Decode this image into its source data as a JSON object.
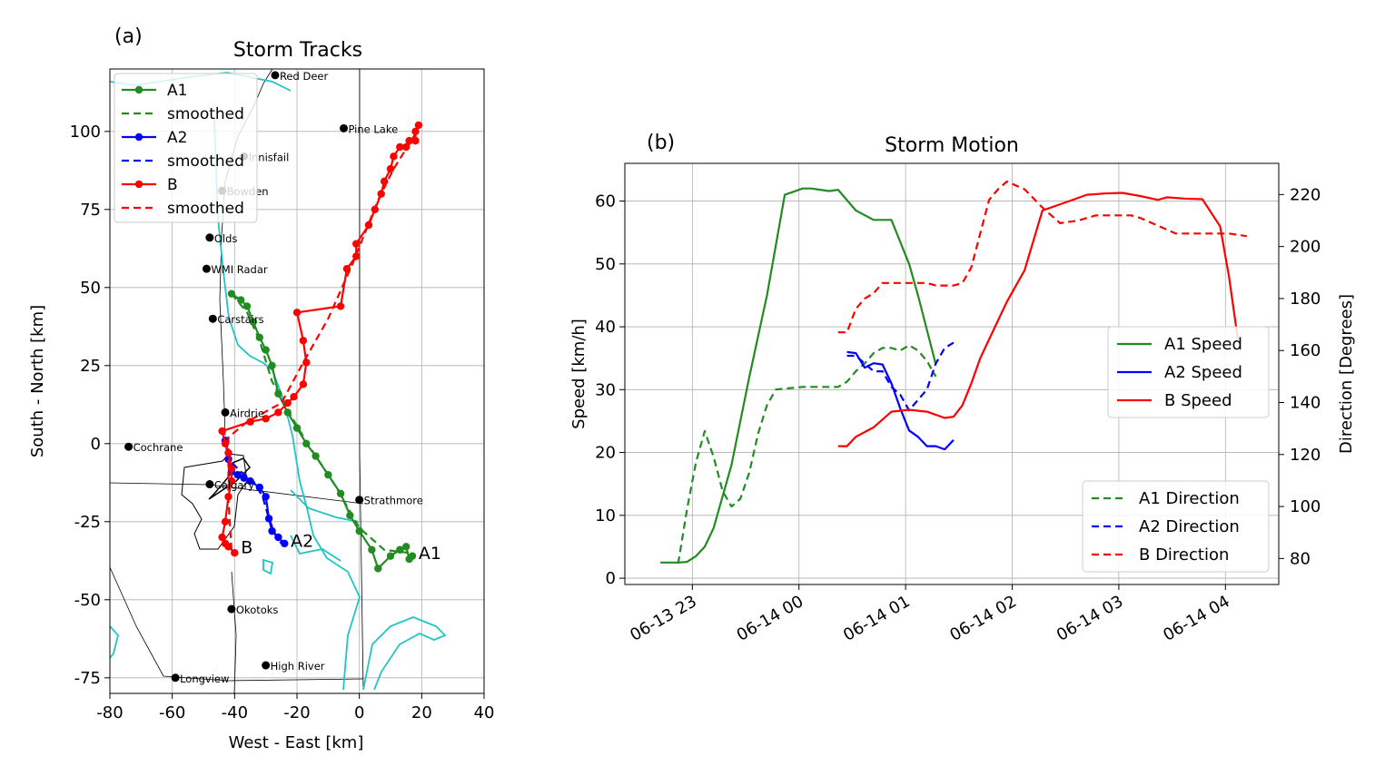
{
  "chart_data": [
    {
      "panel_label": "(a)",
      "type": "line",
      "title": "Storm Tracks",
      "xlabel": "West - East [km]",
      "ylabel": "South - North [km]",
      "xlim": [
        -80,
        40
      ],
      "ylim": [
        -80,
        120
      ],
      "xticks": [
        -80,
        -60,
        -40,
        -20,
        0,
        20,
        40
      ],
      "yticks": [
        -75,
        -50,
        -25,
        0,
        25,
        50,
        75,
        100
      ],
      "grid": true,
      "legend_position": "upper-left",
      "legend": [
        "A1",
        "smoothed",
        "A2",
        "smoothed",
        "B",
        "smoothed"
      ],
      "colors": {
        "A1": "#228b22",
        "A2": "#0000ff",
        "B": "#ff0000",
        "rivers": "#22c4c4",
        "city": "#000000"
      },
      "series": [
        {
          "name": "A1",
          "style": "solid-markers",
          "x": [
            -41,
            -38,
            -36,
            -34,
            -32,
            -30,
            -28,
            -26,
            -23,
            -20,
            -17,
            -14,
            -10,
            -6,
            -3,
            0,
            4,
            6,
            10,
            13,
            15,
            16,
            17
          ],
          "y": [
            48,
            46,
            44,
            39,
            34,
            30,
            25,
            16,
            10,
            5,
            0,
            -4,
            -10,
            -16,
            -23,
            -28,
            -34,
            -40,
            -36,
            -34,
            -33,
            -37,
            -36
          ]
        },
        {
          "name": "smoothed",
          "series_of": "A1",
          "style": "dashed",
          "x": [
            -41,
            -36,
            -32,
            -28,
            -22,
            -16,
            -8,
            0,
            8,
            16
          ],
          "y": [
            48,
            42,
            33,
            20,
            9,
            -1,
            -13,
            -27,
            -34,
            -35
          ]
        },
        {
          "name": "A2",
          "style": "solid-markers",
          "x": [
            -43,
            -42,
            -41,
            -39,
            -37,
            -35,
            -32,
            -30,
            -29,
            -28,
            -26,
            -24
          ],
          "y": [
            1,
            -5,
            -9,
            -10,
            -11,
            -12,
            -14,
            -17,
            -24,
            -28,
            -30,
            -32
          ]
        },
        {
          "name": "smoothed",
          "series_of": "A2",
          "style": "dashed",
          "x": [
            -43,
            -41,
            -38,
            -34,
            -31,
            -29,
            -27,
            -25
          ],
          "y": [
            1,
            -6,
            -9,
            -12,
            -17,
            -24,
            -29,
            -32
          ]
        },
        {
          "name": "B",
          "style": "solid-markers",
          "x": [
            -40,
            -42,
            -43,
            -44,
            -43,
            -42,
            -41,
            -41,
            -42,
            -43,
            -44,
            -35,
            -30,
            -26,
            -23,
            -21,
            -18,
            -17,
            -18,
            -20,
            -6,
            -4,
            -1,
            -1,
            3,
            5,
            7,
            8,
            10,
            11,
            13,
            15,
            16,
            18,
            18,
            19
          ],
          "y": [
            -35,
            -33,
            -32,
            -30,
            -25,
            -17,
            -12,
            -8,
            -3,
            0,
            4,
            7,
            8,
            10,
            13,
            15,
            19,
            26,
            33,
            42,
            44,
            56,
            60,
            64,
            70,
            75,
            80,
            84,
            88,
            92,
            95,
            95,
            97,
            97,
            100,
            102
          ]
        },
        {
          "name": "smoothed",
          "series_of": "B",
          "style": "dashed",
          "x": [
            -41,
            -42,
            -42,
            -36,
            -25,
            -18,
            -10,
            -2,
            6,
            11,
            16,
            19
          ],
          "y": [
            -34,
            -18,
            2,
            7,
            13,
            26,
            40,
            58,
            78,
            88,
            96,
            101
          ]
        }
      ],
      "track_labels": [
        {
          "text": "A1",
          "x": 19,
          "y": -35
        },
        {
          "text": "A2",
          "x": -22,
          "y": -31
        },
        {
          "text": "B",
          "x": -38,
          "y": -33
        }
      ],
      "cities": [
        {
          "name": "Red Deer",
          "x": -27,
          "y": 118
        },
        {
          "name": "Pine Lake",
          "x": -5,
          "y": 101
        },
        {
          "name": "Innisfail",
          "x": -37,
          "y": 92
        },
        {
          "name": "Bowden",
          "x": -44,
          "y": 81
        },
        {
          "name": "Olds",
          "x": -48,
          "y": 66
        },
        {
          "name": "WMI Radar",
          "x": -49,
          "y": 56
        },
        {
          "name": "Carstairs",
          "x": -47,
          "y": 40
        },
        {
          "name": "Airdrie",
          "x": -43,
          "y": 10
        },
        {
          "name": "Cochrane",
          "x": -74,
          "y": -1
        },
        {
          "name": "Calgary",
          "x": -48,
          "y": -13
        },
        {
          "name": "Strathmore",
          "x": 0,
          "y": -18
        },
        {
          "name": "Okotoks",
          "x": -41,
          "y": -53
        },
        {
          "name": "High River",
          "x": -30,
          "y": -71
        },
        {
          "name": "Longview",
          "x": -59,
          "y": -75
        }
      ]
    },
    {
      "panel_label": "(b)",
      "type": "line",
      "title": "Storm Motion",
      "ylabel": "Speed [km/h]",
      "y2label": "Direction [Degrees]",
      "ylim": [
        -1,
        66
      ],
      "y2lim": [
        70,
        232
      ],
      "xlim_hours_utc": [
        "06-13 22:22",
        "06-14 04:30"
      ],
      "xticks": [
        "06-13 23",
        "06-14 00",
        "06-14 01",
        "06-14 02",
        "06-14 03",
        "06-14 04"
      ],
      "yticks": [
        0,
        10,
        20,
        30,
        40,
        50,
        60
      ],
      "y2ticks": [
        80,
        100,
        120,
        140,
        160,
        180,
        200,
        220
      ],
      "grid": true,
      "legend_speed": {
        "position": "center-right",
        "entries": [
          "A1 Speed",
          "A2 Speed",
          "B Speed"
        ]
      },
      "legend_direction": {
        "position": "lower-right",
        "entries": [
          "A1 Direction",
          "A2 Direction",
          "B Direction"
        ]
      },
      "series": [
        {
          "name": "A1 Speed",
          "axis": "speed",
          "color": "#228b22",
          "dash": false,
          "t": [
            "06-13 22:42",
            "06-13 22:52",
            "06-13 22:57",
            "06-13 23:02",
            "06-13 23:07",
            "06-13 23:12",
            "06-13 23:22",
            "06-13 23:32",
            "06-13 23:42",
            "06-13 23:47",
            "06-13 23:52",
            "06-13 23:57",
            "06-14 00:02",
            "06-14 00:07",
            "06-14 00:12",
            "06-14 00:17",
            "06-14 00:22",
            "06-14 00:32",
            "06-14 00:42",
            "06-14 00:52",
            "06-14 01:02",
            "06-14 01:07",
            "06-14 01:17"
          ],
          "v": [
            2.5,
            2.5,
            2.6,
            3.5,
            5,
            8,
            18,
            32,
            45,
            53,
            61,
            61.5,
            62,
            62,
            61.8,
            61.6,
            61.8,
            58.5,
            57,
            57,
            50,
            45,
            34
          ]
        },
        {
          "name": "A1 Direction",
          "axis": "direction",
          "color": "#228b22",
          "dash": true,
          "t": [
            "06-13 22:52",
            "06-13 22:57",
            "06-13 23:02",
            "06-13 23:07",
            "06-13 23:12",
            "06-13 23:17",
            "06-13 23:22",
            "06-13 23:27",
            "06-13 23:32",
            "06-13 23:37",
            "06-13 23:42",
            "06-13 23:47",
            "06-14 00:02",
            "06-14 00:12",
            "06-14 00:22",
            "06-14 00:27",
            "06-14 00:32",
            "06-14 00:37",
            "06-14 00:42",
            "06-14 00:47",
            "06-14 00:52",
            "06-14 00:57",
            "06-14 01:02",
            "06-14 01:07",
            "06-14 01:12",
            "06-14 01:17"
          ],
          "v": [
            78,
            99,
            117,
            129,
            119,
            106,
            100,
            103,
            113,
            128,
            139,
            145,
            146,
            146,
            146,
            148,
            152,
            155,
            159,
            161,
            161,
            160,
            162,
            160,
            156,
            150
          ]
        },
        {
          "name": "A2 Speed",
          "axis": "speed",
          "color": "#0000ff",
          "dash": false,
          "t": [
            "06-14 00:27",
            "06-14 00:32",
            "06-14 00:37",
            "06-14 00:42",
            "06-14 00:47",
            "06-14 00:52",
            "06-14 00:57",
            "06-14 01:02",
            "06-14 01:07",
            "06-14 01:12",
            "06-14 01:17",
            "06-14 01:22",
            "06-14 01:27"
          ],
          "v": [
            36,
            35.8,
            33.5,
            34.2,
            34,
            31,
            27,
            23.5,
            22.5,
            21,
            21,
            20.5,
            22
          ]
        },
        {
          "name": "A2 Direction",
          "axis": "direction",
          "color": "#0000ff",
          "dash": true,
          "t": [
            "06-14 00:27",
            "06-14 00:32",
            "06-14 00:37",
            "06-14 00:42",
            "06-14 00:47",
            "06-14 00:52",
            "06-14 00:57",
            "06-14 01:02",
            "06-14 01:07",
            "06-14 01:12",
            "06-14 01:17",
            "06-14 01:22",
            "06-14 01:27"
          ],
          "v": [
            158,
            158,
            155,
            152,
            152,
            146,
            143,
            137,
            141,
            145,
            155,
            161,
            163
          ]
        },
        {
          "name": "B Speed",
          "axis": "speed",
          "color": "#ff0000",
          "dash": false,
          "t": [
            "06-14 00:22",
            "06-14 00:27",
            "06-14 00:32",
            "06-14 00:42",
            "06-14 00:52",
            "06-14 01:02",
            "06-14 01:12",
            "06-14 01:22",
            "06-14 01:27",
            "06-14 01:32",
            "06-14 01:37",
            "06-14 01:42",
            "06-14 01:47",
            "06-14 01:57",
            "06-14 02:07",
            "06-14 02:17",
            "06-14 02:22",
            "06-14 02:32",
            "06-14 02:42",
            "06-14 02:52",
            "06-14 03:02",
            "06-14 03:12",
            "06-14 03:22",
            "06-14 03:27",
            "06-14 03:37",
            "06-14 03:47",
            "06-14 03:57",
            "06-14 04:02",
            "06-14 04:07"
          ],
          "v": [
            21,
            21,
            22.5,
            24,
            26.5,
            26.8,
            26.5,
            25.5,
            25.7,
            27.5,
            31,
            35,
            38,
            44,
            49,
            58.5,
            59,
            60,
            61,
            61.2,
            61.3,
            60.8,
            60.2,
            60.6,
            60.4,
            60.3,
            56,
            48,
            38
          ]
        },
        {
          "name": "B Direction",
          "axis": "direction",
          "color": "#ff0000",
          "dash": true,
          "t": [
            "06-14 00:22",
            "06-14 00:27",
            "06-14 00:32",
            "06-14 00:37",
            "06-14 00:42",
            "06-14 00:47",
            "06-14 00:52",
            "06-14 01:02",
            "06-14 01:12",
            "06-14 01:17",
            "06-14 01:22",
            "06-14 01:27",
            "06-14 01:32",
            "06-14 01:37",
            "06-14 01:42",
            "06-14 01:47",
            "06-14 01:52",
            "06-14 01:57",
            "06-14 02:07",
            "06-14 02:17",
            "06-14 02:27",
            "06-14 02:37",
            "06-14 02:47",
            "06-14 02:57",
            "06-14 03:07",
            "06-14 03:12",
            "06-14 03:22",
            "06-14 03:32",
            "06-14 03:42",
            "06-14 03:52",
            "06-14 04:02",
            "06-14 04:12"
          ],
          "v": [
            167,
            167,
            176,
            180,
            182,
            186,
            186,
            186,
            186,
            185,
            185,
            185,
            186,
            192,
            205,
            218,
            222,
            225,
            222,
            215,
            209,
            210,
            212,
            212,
            212,
            211,
            208,
            205,
            205,
            205,
            205,
            204
          ]
        }
      ]
    }
  ]
}
